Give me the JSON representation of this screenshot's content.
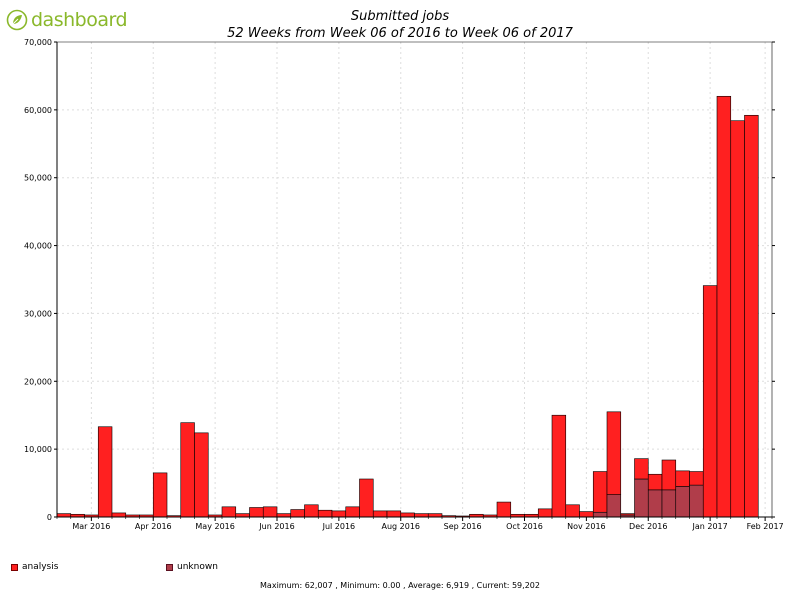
{
  "logo": {
    "text": "dashboard",
    "icon": "leaf-icon",
    "color": "#8ab82b"
  },
  "chart_data": {
    "type": "bar",
    "stacked": true,
    "title": "Submitted jobs",
    "subtitle": "52 Weeks from Week 06 of 2016 to Week 06 of 2017",
    "ylim": [
      0,
      70000
    ],
    "yticks": [
      0,
      10000,
      20000,
      30000,
      40000,
      50000,
      60000,
      70000
    ],
    "ytick_labels": [
      "0",
      "10,000",
      "20,000",
      "30,000",
      "40,000",
      "50,000",
      "60,000",
      "70,000"
    ],
    "x_labels": [
      {
        "text": "Mar 2016",
        "week": 2
      },
      {
        "text": "Apr 2016",
        "week": 6.5
      },
      {
        "text": "May 2016",
        "week": 11
      },
      {
        "text": "Jun 2016",
        "week": 15.5
      },
      {
        "text": "Jul 2016",
        "week": 20
      },
      {
        "text": "Aug 2016",
        "week": 24.5
      },
      {
        "text": "Sep 2016",
        "week": 29
      },
      {
        "text": "Oct 2016",
        "week": 33.5
      },
      {
        "text": "Nov 2016",
        "week": 38
      },
      {
        "text": "Dec 2016",
        "week": 42.5
      },
      {
        "text": "Jan 2017",
        "week": 47
      },
      {
        "text": "Feb 2017",
        "week": 51
      }
    ],
    "grid": true,
    "legend_position": "bottom",
    "series": [
      {
        "name": "analysis",
        "color": "#ff2020",
        "values": [
          500,
          400,
          300,
          13300,
          600,
          300,
          300,
          6500,
          200,
          13900,
          12400,
          300,
          1500,
          500,
          1400,
          1500,
          500,
          1100,
          1800,
          1000,
          900,
          1500,
          5600,
          900,
          900,
          600,
          500,
          500,
          200,
          150,
          400,
          300,
          2200,
          400,
          400,
          1200,
          15000,
          1800,
          800,
          6000,
          12200,
          200,
          3000,
          2300,
          4400,
          2300,
          2000,
          34100,
          62000,
          58400,
          59200,
          0
        ]
      },
      {
        "name": "unknown",
        "color": "#b03d4a",
        "values": [
          0,
          0,
          0,
          0,
          0,
          0,
          0,
          0,
          0,
          0,
          0,
          0,
          0,
          0,
          0,
          0,
          0,
          0,
          0,
          0,
          0,
          0,
          0,
          0,
          0,
          0,
          0,
          0,
          0,
          0,
          0,
          0,
          0,
          0,
          0,
          0,
          0,
          0,
          0,
          700,
          3300,
          300,
          5600,
          4000,
          4000,
          4500,
          4700,
          0,
          0,
          0,
          0,
          0
        ]
      }
    ]
  },
  "footer": {
    "text": "Maximum: 62,007 , Minimum: 0.00 , Average: 6,919 , Current: 59,202"
  }
}
